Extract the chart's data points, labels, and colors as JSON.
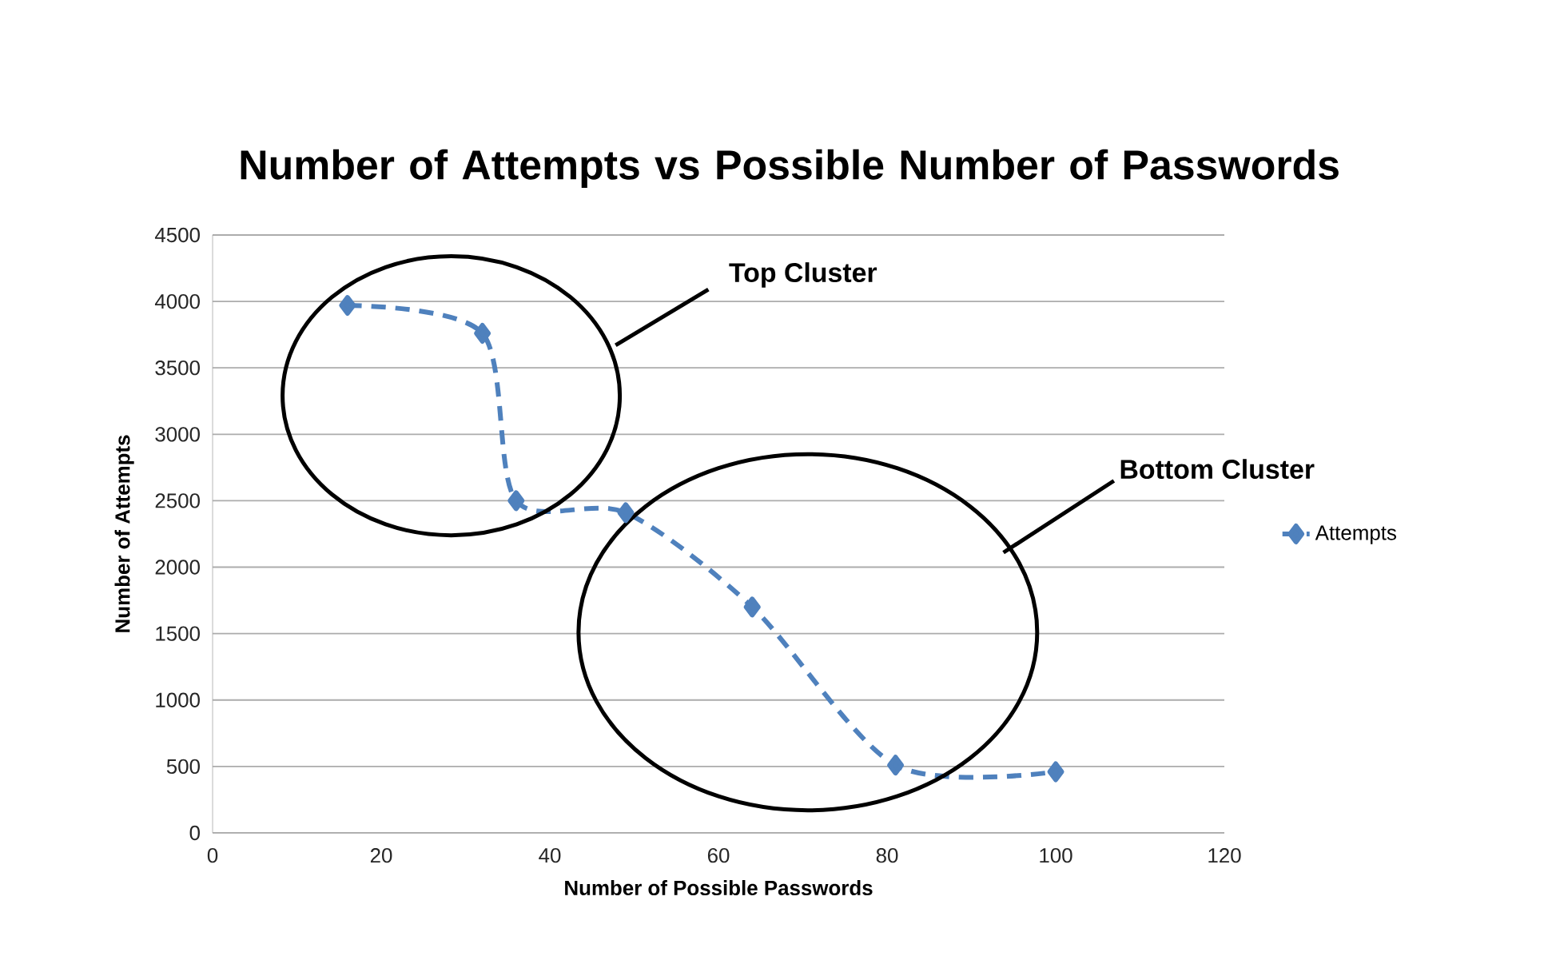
{
  "chart_data": {
    "type": "line",
    "title": "Number of Attempts vs Possible Number of Passwords",
    "xlabel": "Number of Possible Passwords",
    "ylabel": "Number of Attempts",
    "x": [
      16,
      32,
      36,
      49,
      64,
      81,
      100
    ],
    "series": [
      {
        "name": "Attempts",
        "color": "#4f81bd",
        "values": [
          3970,
          3760,
          2500,
          2410,
          1700,
          510,
          460
        ]
      }
    ],
    "xlim": [
      0,
      120
    ],
    "ylim": [
      0,
      4500
    ],
    "xticks": [
      0,
      20,
      40,
      60,
      80,
      100,
      120
    ],
    "yticks": [
      0,
      500,
      1000,
      1500,
      2000,
      2500,
      3000,
      3500,
      4000,
      4500
    ],
    "grid": "y",
    "legend": "right",
    "marker": "diamond",
    "line_style": "dashed",
    "annotations": [
      "Top Cluster",
      "Bottom Cluster"
    ]
  }
}
